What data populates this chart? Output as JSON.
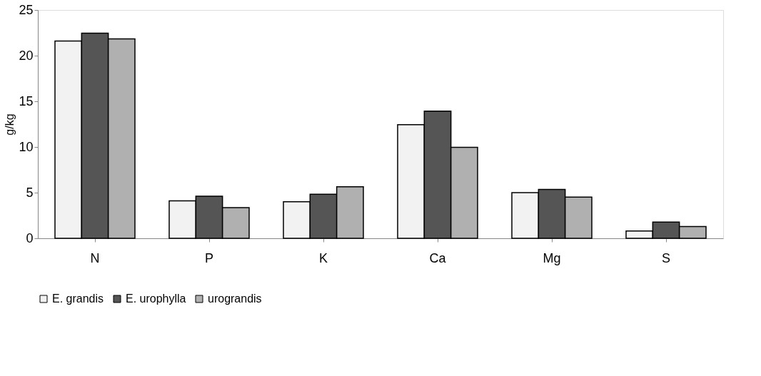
{
  "chart_data": {
    "type": "bar",
    "ylabel": "g/kg",
    "categories": [
      "N",
      "P",
      "K",
      "Ca",
      "Mg",
      "S"
    ],
    "series": [
      {
        "name": "E. grandis",
        "color": "#f2f2f2",
        "values": [
          21.6,
          4.1,
          4.0,
          12.45,
          5.0,
          0.8
        ]
      },
      {
        "name": "E. urophylla",
        "color": "#555555",
        "values": [
          22.46,
          4.6,
          4.83,
          13.93,
          5.36,
          1.78
        ]
      },
      {
        "name": "urograndis",
        "color": "#b0b0b0",
        "values": [
          21.83,
          3.36,
          5.64,
          9.97,
          4.51,
          1.29
        ]
      }
    ],
    "ylim": [
      0,
      25
    ],
    "yticks": [
      0,
      5,
      10,
      15,
      20,
      25
    ],
    "grid": false,
    "legend": "bottom"
  }
}
